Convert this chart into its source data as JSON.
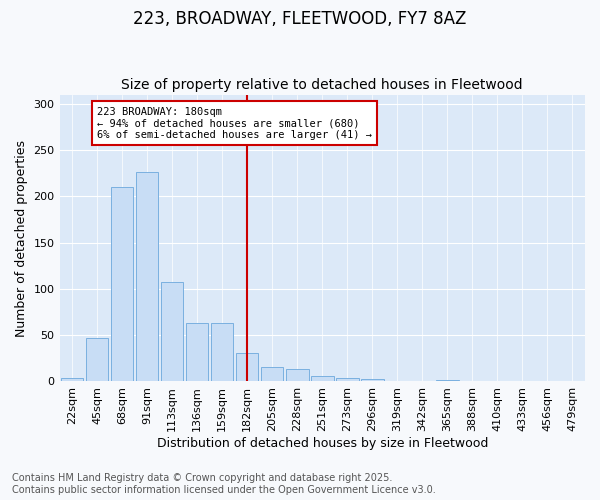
{
  "title": "223, BROADWAY, FLEETWOOD, FY7 8AZ",
  "subtitle": "Size of property relative to detached houses in Fleetwood",
  "xlabel": "Distribution of detached houses by size in Fleetwood",
  "ylabel": "Number of detached properties",
  "categories": [
    "22sqm",
    "45sqm",
    "68sqm",
    "91sqm",
    "113sqm",
    "136sqm",
    "159sqm",
    "182sqm",
    "205sqm",
    "228sqm",
    "251sqm",
    "273sqm",
    "296sqm",
    "319sqm",
    "342sqm",
    "365sqm",
    "388sqm",
    "410sqm",
    "433sqm",
    "456sqm",
    "479sqm"
  ],
  "values": [
    4,
    47,
    210,
    226,
    107,
    63,
    63,
    31,
    16,
    13,
    6,
    4,
    3,
    1,
    0,
    2,
    0,
    0,
    0,
    0,
    1
  ],
  "bar_color": "#c8ddf5",
  "bar_edge_color": "#7ab0e0",
  "reference_line_x": 7,
  "annotation_text": "223 BROADWAY: 180sqm\n← 94% of detached houses are smaller (680)\n6% of semi-detached houses are larger (41) →",
  "annotation_box_color": "#ffffff",
  "annotation_box_edge_color": "#cc0000",
  "ylim": [
    0,
    310
  ],
  "yticks": [
    0,
    50,
    100,
    150,
    200,
    250,
    300
  ],
  "plot_bg_color": "#dce9f8",
  "fig_bg_color": "#f7f9fc",
  "grid_color": "#ffffff",
  "footer_text": "Contains HM Land Registry data © Crown copyright and database right 2025.\nContains public sector information licensed under the Open Government Licence v3.0.",
  "vline_color": "#cc0000",
  "title_fontsize": 12,
  "subtitle_fontsize": 10,
  "axis_label_fontsize": 9,
  "tick_fontsize": 8,
  "footer_fontsize": 7
}
